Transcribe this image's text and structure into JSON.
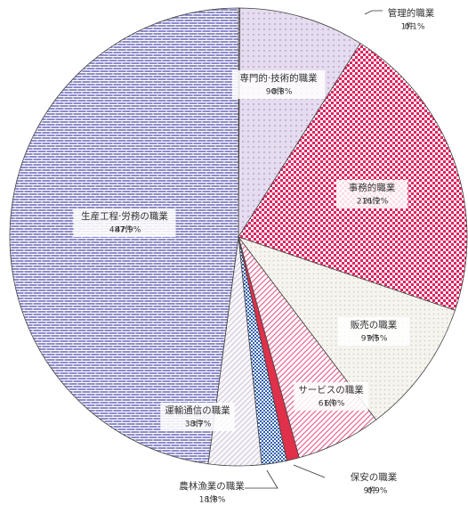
{
  "chart_data": {
    "type": "pie",
    "categories": [
      "管理的職業",
      "専門的·技術的職業",
      "事務的職業",
      "販売の職業",
      "サービスの職業",
      "保安の職業",
      "農林漁業の職業",
      "運輸通信の職業",
      "生産工程·労務の職業"
    ],
    "values": [
      1,
      90,
      216,
      97,
      61,
      9,
      18,
      38,
      487
    ],
    "value_labels": [
      "1件",
      "90件",
      "216件",
      "97件",
      "61件",
      "9件",
      "18件",
      "38件",
      "487件"
    ],
    "percentages": [
      0.1,
      8.8,
      21.2,
      9.5,
      6.0,
      0.9,
      1.8,
      3.7,
      47.9
    ],
    "percentage_labels": [
      "0.1%",
      "8.8%",
      "21.2%",
      "9.5%",
      "6.0%",
      "0.9%",
      "1.8%",
      "3.7%",
      "47.9%"
    ],
    "colors": [
      "#c9a9d6",
      "#d9cbe6",
      "#e0245e",
      "#ece8e0",
      "#f0a6bd",
      "#e0304a",
      "#2f5fb3",
      "#e2dce8",
      "#8e8cc8"
    ]
  }
}
